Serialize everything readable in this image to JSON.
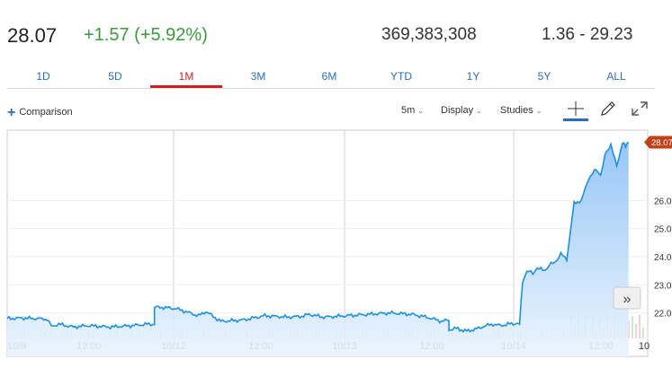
{
  "quote": {
    "price": "28.07",
    "change": "+1.57 (+5.92%)",
    "volume": "369,383,308",
    "range": "1.36 - 29.23"
  },
  "tabs": [
    {
      "label": "1D",
      "active": false
    },
    {
      "label": "5D",
      "active": false
    },
    {
      "label": "1M",
      "active": true
    },
    {
      "label": "3M",
      "active": false
    },
    {
      "label": "6M",
      "active": false
    },
    {
      "label": "YTD",
      "active": false
    },
    {
      "label": "1Y",
      "active": false
    },
    {
      "label": "5Y",
      "active": false
    },
    {
      "label": "ALL",
      "active": false
    }
  ],
  "toolbar": {
    "comparison_label": "Comparison",
    "interval_label": "5m",
    "display_label": "Display",
    "studies_label": "Studies",
    "icons": [
      "crosshair-icon",
      "pencil-icon",
      "expand-icon"
    ]
  },
  "chart_nav": {
    "next_icon": "double-chevron-right-icon"
  },
  "colors": {
    "line": "#1e90e0",
    "fill_top": "#8cc0f5",
    "fill_bottom": "#eaf4fe",
    "up": "#3c9a3c",
    "active_tab": "#d02020",
    "link": "#2a6ebb",
    "price_tag": "#c2401a"
  },
  "chart_data": {
    "type": "area",
    "title": "",
    "xlabel": "",
    "ylabel": "",
    "ylim": [
      21.35,
      28.5
    ],
    "y_ticks": [
      "22.0",
      "23.0",
      "24.0",
      "25.0",
      "26.0"
    ],
    "last_price_label": "28.07",
    "x_tick_labels": [
      "10/9",
      "12:00",
      "10/12",
      "12:00",
      "10/13",
      "12:00",
      "10/14",
      "12:00",
      "10"
    ],
    "series": [
      {
        "x": [
          0,
          0.1,
          0.2,
          0.27,
          0.3,
          0.35,
          0.45,
          0.55,
          0.7,
          0.85,
          0.95,
          1.0,
          1.0,
          1.05,
          1.15,
          1.3,
          1.35,
          1.45,
          1.6,
          1.75,
          1.9,
          2.0,
          2.0,
          2.05,
          2.15,
          2.3,
          2.45,
          2.6,
          2.75,
          2.85,
          2.95,
          3.0,
          3.0,
          3.05,
          3.12,
          3.2,
          3.25,
          3.3,
          3.35,
          3.4,
          3.45,
          3.48,
          3.5,
          3.53,
          3.57,
          3.6,
          3.65,
          3.68,
          3.72,
          3.76,
          3.8,
          3.85,
          3.9
        ],
        "values": [
          21.8,
          21.82,
          21.8,
          21.78,
          21.52,
          21.6,
          21.5,
          21.55,
          21.5,
          21.55,
          21.6,
          21.6,
          22.2,
          22.2,
          22.15,
          21.9,
          22.05,
          21.7,
          21.75,
          21.9,
          21.85,
          21.88,
          21.88,
          21.95,
          21.85,
          21.9,
          21.95,
          22.0,
          21.95,
          21.85,
          21.7,
          21.75,
          21.4,
          21.45,
          21.35,
          21.45,
          21.55,
          21.6,
          21.55,
          21.6,
          21.62,
          21.6,
          23.1,
          23.5,
          23.4,
          23.6,
          23.5,
          23.7,
          23.8,
          24.1,
          23.9,
          25.9,
          26.0
        ]
      },
      {
        "x": [
          3.9,
          3.95,
          4.0,
          4.03,
          4.06,
          4.1,
          4.14,
          4.18,
          4.2,
          4.22
        ],
        "values": [
          26.0,
          26.8,
          27.1,
          26.9,
          27.6,
          28.0,
          27.2,
          28.1,
          27.9,
          28.07
        ]
      }
    ]
  }
}
